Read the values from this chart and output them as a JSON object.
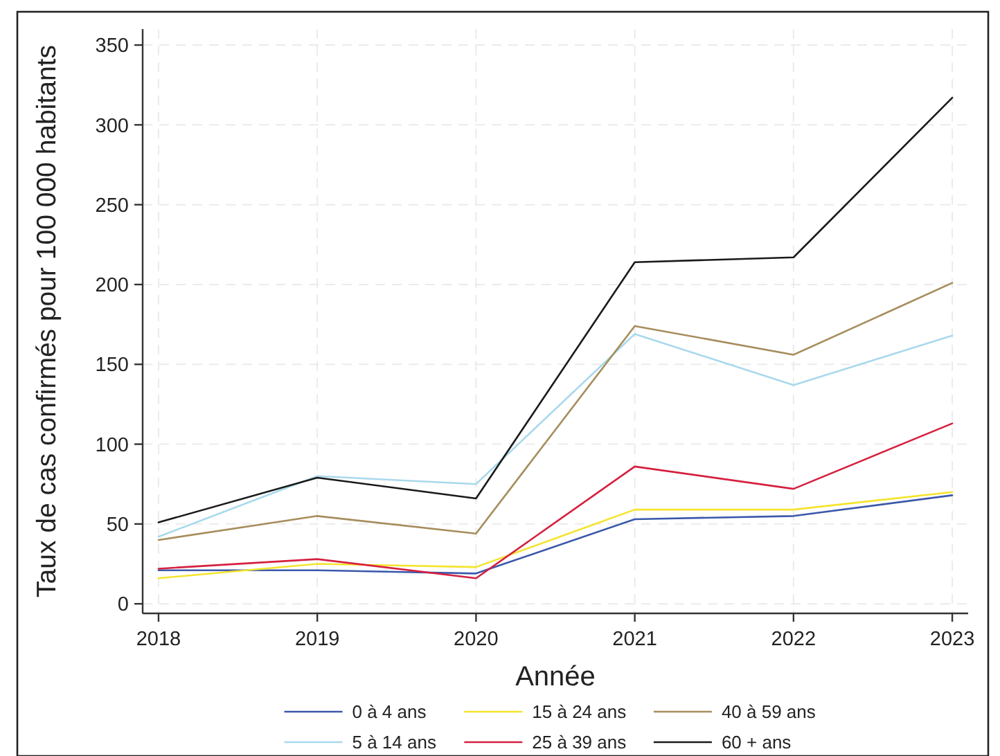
{
  "chart_data": {
    "type": "line",
    "xlabel": "Année",
    "ylabel": "Taux de cas confirmés pour 100 000 habitants",
    "x": [
      2018,
      2019,
      2020,
      2021,
      2022,
      2023
    ],
    "xlim": [
      2017.9,
      2023.1
    ],
    "xticks": [
      2018,
      2019,
      2020,
      2021,
      2022,
      2023
    ],
    "ylim": [
      -6,
      360
    ],
    "yticks": [
      0,
      50,
      100,
      150,
      200,
      250,
      300,
      350
    ],
    "grid": true,
    "legend": "bottom",
    "series": [
      {
        "name": "0 à 4 ans",
        "color": "#3c58ab",
        "values": [
          21,
          21,
          19,
          53,
          55,
          68
        ]
      },
      {
        "name": "5 à 14 ans",
        "color": "#a9d9ec",
        "values": [
          42,
          80,
          75,
          169,
          137,
          168
        ]
      },
      {
        "name": "15 à 24 ans",
        "color": "#f4e42c",
        "values": [
          16,
          25,
          23,
          59,
          59,
          70
        ]
      },
      {
        "name": "25 à 39 ans",
        "color": "#d5203f",
        "values": [
          22,
          28,
          16,
          86,
          72,
          113
        ]
      },
      {
        "name": "40 à 59 ans",
        "color": "#a68d5c",
        "values": [
          40,
          55,
          44,
          174,
          156,
          201
        ]
      },
      {
        "name": "60 + ans",
        "color": "#1a1a1a",
        "values": [
          51,
          79,
          66,
          214,
          217,
          317
        ]
      }
    ]
  }
}
